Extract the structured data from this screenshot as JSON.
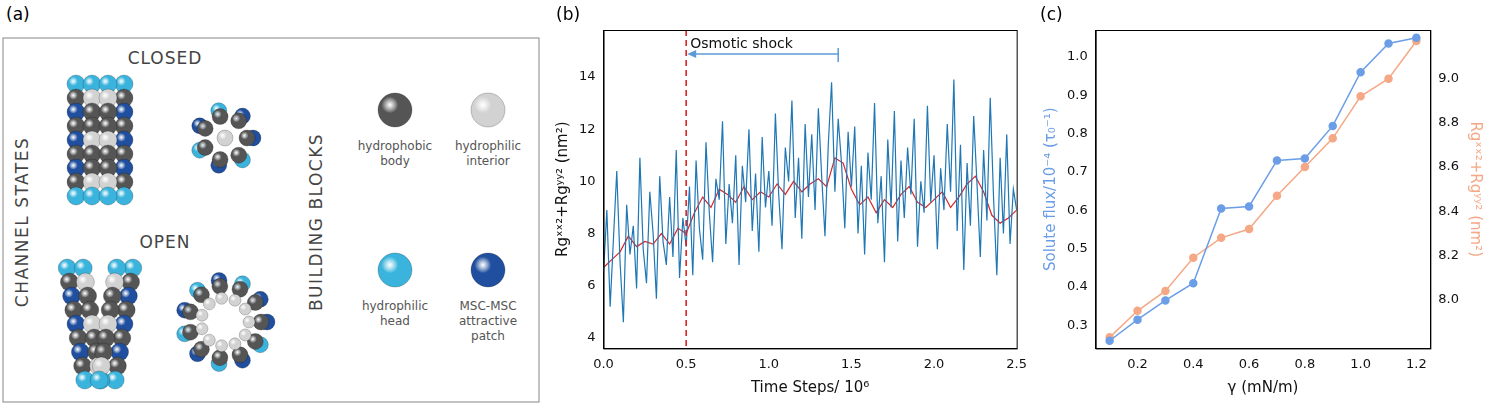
{
  "diagram": {
    "label": "(a)",
    "side_title": "CHANNEL STATES",
    "states": [
      "CLOSED",
      "OPEN"
    ],
    "blocks_title": "BUILDING BLOCKS",
    "building_blocks": [
      {
        "label": "hydrophobic body",
        "color": "#555555"
      },
      {
        "label": "hydrophilic interior",
        "color": "#d2d2d2"
      },
      {
        "label": "hydrophilic head",
        "color": "#3ab4dc"
      },
      {
        "label": "MSC-MSC attractive patch",
        "color": "#1f4f9e"
      }
    ]
  },
  "chart_data": [
    {
      "panel": "(b)",
      "type": "line",
      "xlabel": "Time Steps/ 10⁶",
      "ylabel": "Rgˣˣ²+Rgʸʸ² (nm²)",
      "xlim": [
        0,
        2.5
      ],
      "xticks": [
        {
          "value": 0,
          "label": "0.0"
        },
        0.5,
        {
          "value": 1,
          "label": "1.0"
        },
        1.5,
        {
          "value": 2,
          "label": "2.0"
        },
        2.5
      ],
      "ylim": [
        3.6,
        15.8
      ],
      "yticks": [
        4,
        6,
        8,
        10,
        12,
        14
      ],
      "grid": false,
      "annotations": [
        {
          "text": "Osmotic shock",
          "x": 0.5,
          "arrow_from": 1.42
        }
      ],
      "series": [
        {
          "color": "#1f77b4",
          "x": [
            0,
            0.02,
            0.04,
            0.06,
            0.08,
            0.1,
            0.12,
            0.14,
            0.16,
            0.18,
            0.2,
            0.22,
            0.24,
            0.26,
            0.28,
            0.3,
            0.32,
            0.34,
            0.36,
            0.38,
            0.4,
            0.42,
            0.44,
            0.46,
            0.48,
            0.5,
            0.52,
            0.54,
            0.56,
            0.58,
            0.6,
            0.62,
            0.64,
            0.66,
            0.68,
            0.7,
            0.72,
            0.74,
            0.76,
            0.78,
            0.8,
            0.82,
            0.84,
            0.86,
            0.88,
            0.9,
            0.92,
            0.94,
            0.96,
            0.98,
            1.0,
            1.02,
            1.04,
            1.06,
            1.08,
            1.1,
            1.12,
            1.14,
            1.16,
            1.18,
            1.2,
            1.22,
            1.24,
            1.26,
            1.28,
            1.3,
            1.32,
            1.34,
            1.36,
            1.38,
            1.4,
            1.42,
            1.44,
            1.46,
            1.48,
            1.5,
            1.52,
            1.54,
            1.56,
            1.58,
            1.6,
            1.62,
            1.64,
            1.66,
            1.68,
            1.7,
            1.72,
            1.74,
            1.76,
            1.78,
            1.8,
            1.82,
            1.84,
            1.86,
            1.88,
            1.9,
            1.92,
            1.94,
            1.96,
            1.98,
            2.0,
            2.02,
            2.04,
            2.06,
            2.08,
            2.1,
            2.12,
            2.14,
            2.16,
            2.18,
            2.2,
            2.22,
            2.24,
            2.26,
            2.28,
            2.3,
            2.32,
            2.34,
            2.36,
            2.38,
            2.4,
            2.42,
            2.44,
            2.46,
            2.48,
            2.5
          ],
          "values": [
            6.5,
            8.9,
            5.2,
            7.8,
            10.4,
            6.9,
            4.6,
            9.1,
            7.2,
            8.3,
            5.9,
            10.9,
            7.4,
            6.1,
            9.6,
            8.0,
            5.5,
            10.2,
            7.7,
            6.8,
            9.4,
            7.1,
            11.2,
            6.3,
            8.6,
            7.5,
            9.8,
            6.4,
            10.8,
            8.2,
            7.0,
            11.5,
            8.8,
            6.9,
            10.1,
            9.3,
            12.3,
            7.6,
            9.9,
            8.4,
            11.0,
            6.8,
            10.6,
            9.2,
            12.0,
            8.1,
            10.3,
            7.3,
            11.7,
            9.0,
            10.4,
            8.3,
            12.6,
            9.5,
            7.4,
            11.3,
            10.0,
            13.1,
            8.6,
            10.9,
            7.8,
            12.2,
            9.4,
            11.8,
            8.9,
            12.8,
            10.2,
            7.9,
            11.4,
            13.8,
            9.6,
            12.4,
            10.7,
            8.2,
            11.9,
            9.8,
            12.1,
            8.0,
            10.6,
            7.2,
            11.1,
            9.3,
            13.0,
            8.4,
            10.2,
            6.9,
            11.6,
            9.0,
            12.7,
            7.7,
            10.8,
            8.6,
            11.3,
            9.5,
            12.4,
            7.5,
            10.0,
            8.8,
            12.9,
            9.2,
            11.0,
            7.4,
            10.5,
            8.9,
            12.2,
            9.6,
            13.9,
            8.1,
            11.4,
            6.6,
            10.7,
            8.3,
            12.5,
            9.9,
            7.1,
            11.2,
            8.5,
            13.2,
            9.4,
            6.4,
            10.9,
            8.0,
            11.8,
            7.6,
            9.7,
            8.9
          ]
        },
        {
          "color": "#d62728",
          "x": [
            0,
            0.05,
            0.1,
            0.15,
            0.2,
            0.25,
            0.3,
            0.35,
            0.4,
            0.45,
            0.5,
            0.55,
            0.6,
            0.65,
            0.7,
            0.75,
            0.8,
            0.85,
            0.9,
            0.95,
            1.0,
            1.05,
            1.1,
            1.15,
            1.2,
            1.25,
            1.3,
            1.35,
            1.4,
            1.45,
            1.5,
            1.55,
            1.6,
            1.65,
            1.7,
            1.75,
            1.8,
            1.85,
            1.9,
            1.95,
            2.0,
            2.05,
            2.1,
            2.15,
            2.2,
            2.25,
            2.3,
            2.35,
            2.4,
            2.45,
            2.5
          ],
          "values": [
            6.7,
            7.0,
            7.3,
            7.9,
            7.5,
            7.7,
            7.6,
            8.0,
            7.6,
            8.2,
            8.0,
            8.8,
            9.4,
            9.0,
            9.7,
            9.5,
            9.2,
            9.8,
            9.3,
            9.6,
            9.4,
            9.9,
            9.5,
            10.0,
            9.6,
            9.9,
            10.1,
            9.8,
            10.9,
            10.7,
            9.7,
            9.1,
            9.4,
            8.8,
            9.3,
            9.0,
            9.5,
            9.8,
            9.2,
            9.0,
            9.3,
            9.6,
            9.0,
            9.4,
            9.9,
            10.2,
            9.6,
            8.7,
            8.4,
            8.6,
            8.9
          ]
        }
      ]
    },
    {
      "panel": "(c)",
      "type": "line",
      "xlabel": "γ (mN/m)",
      "ylabel": "Solute flux/10⁻⁴ (τ₀⁻¹)",
      "y2label": "Rgˣˣ²+Rgʸʸ² (nm²)",
      "xlim": [
        0.05,
        1.25
      ],
      "xticks": [
        0.2,
        0.4,
        0.6,
        0.8,
        {
          "value": 1,
          "label": "1.0"
        },
        1.2
      ],
      "ylim": [
        0.24,
        1.07
      ],
      "yticks": [
        0.3,
        0.4,
        0.5,
        0.6,
        0.7,
        0.8,
        0.9,
        {
          "value": 1,
          "label": "1.0"
        }
      ],
      "y2lim": [
        7.78,
        9.22
      ],
      "y2ticks": [
        {
          "value": 8,
          "label": "8.0"
        },
        8.2,
        8.4,
        8.6,
        8.8,
        {
          "value": 9,
          "label": "9.0"
        }
      ],
      "grid": false,
      "series": [
        {
          "color": "#6b9ee6",
          "marker": "circle",
          "x": [
            0.1,
            0.2,
            0.3,
            0.4,
            0.5,
            0.6,
            0.7,
            0.8,
            0.9,
            1.0,
            1.1,
            1.2
          ],
          "values": [
            0.26,
            0.315,
            0.365,
            0.41,
            0.605,
            0.61,
            0.73,
            0.735,
            0.82,
            0.96,
            1.035,
            1.05
          ]
        },
        {
          "color": "#f5a886",
          "marker": "circle",
          "axis": "y2",
          "x": [
            0.1,
            0.2,
            0.3,
            0.4,
            0.5,
            0.6,
            0.7,
            0.8,
            0.9,
            1.0,
            1.1,
            1.2
          ],
          "values": [
            7.83,
            7.95,
            8.04,
            8.19,
            8.28,
            8.32,
            8.47,
            8.6,
            8.73,
            8.92,
            9.0,
            9.17
          ]
        }
      ]
    }
  ]
}
